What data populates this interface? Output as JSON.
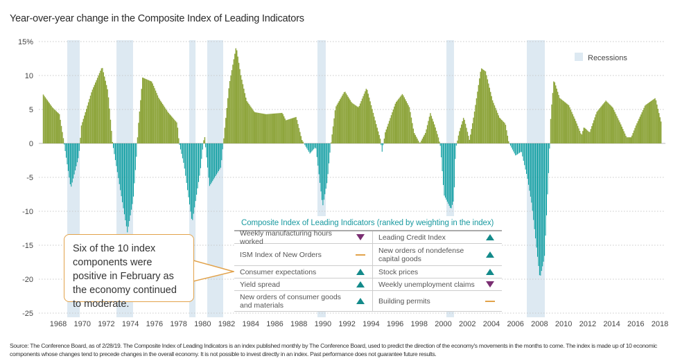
{
  "title": "Year-over-year change in the Composite Index of Leading Indicators",
  "callout": "Six of the 10 index components were positive in February as the economy continued to moderate.",
  "table": {
    "title": "Composite Index of Leading Indicators (ranked by weighting in the index)",
    "rows": [
      [
        {
          "label": "Weekly manufacturing hours worked",
          "dir": "down"
        },
        {
          "label": "Leading Credit Index",
          "dir": "up"
        }
      ],
      [
        {
          "label": "ISM Index of New Orders",
          "dir": "flat"
        },
        {
          "label": "New orders of nondefense capital goods",
          "dir": "up"
        }
      ],
      [
        {
          "label": "Consumer expectations",
          "dir": "up"
        },
        {
          "label": "Stock prices",
          "dir": "up"
        }
      ],
      [
        {
          "label": "Yield spread",
          "dir": "up"
        },
        {
          "label": "Weekly unemployment claims",
          "dir": "down"
        }
      ],
      [
        {
          "label": "New orders of consumer goods and materials",
          "dir": "up"
        },
        {
          "label": "Building permits",
          "dir": "flat"
        }
      ]
    ],
    "colors": {
      "up": "#138a8a",
      "down": "#7a2e72",
      "flat": "#e2a24a"
    }
  },
  "footer": "Source: The Conference Board, as of 2/28/19. The Composite Index of Leading Indicators is an index published monthly by The Conference Board, used to predict the direction of the economy's movements in the months to come. The index is made up of 10 economic components whose changes tend to precede changes in the overall economy. It is not possible to invest directly in an index. Past performance does not guarantee future results.",
  "chart_data": {
    "type": "bar",
    "title": "Year-over-year change in the Composite Index of Leading Indicators",
    "ylim": [
      -25,
      15
    ],
    "xlim": [
      1966.7,
      2018.2
    ],
    "y_ticks": [
      15,
      10,
      5,
      0,
      -5,
      -10,
      -15,
      -20,
      -25
    ],
    "y_tick_labels": [
      "15%",
      "10",
      "5",
      "0",
      "-5",
      "-10",
      "-15",
      "-20",
      "-25"
    ],
    "x_ticks": [
      "1968",
      "1970",
      "1972",
      "1974",
      "1976",
      "1978",
      "1980",
      "1982",
      "1984",
      "1986",
      "1988",
      "1990",
      "1992",
      "1994",
      "1996",
      "1998",
      "2000",
      "2002",
      "2004",
      "2006",
      "2008",
      "2010",
      "2012",
      "2014",
      "2016",
      "2018"
    ],
    "grid": "horizontal dotted",
    "colors": {
      "positive": "#8ea53c",
      "negative": "#00999c",
      "recession": "#dde9f2"
    },
    "legend": {
      "label": "Recessions",
      "placement": "top-right"
    },
    "recessions": [
      [
        1968.75,
        1969.79
      ],
      [
        1972.84,
        1974.22
      ],
      [
        1978.89,
        1979.41
      ],
      [
        1980.38,
        1981.71
      ],
      [
        1989.54,
        1990.23
      ],
      [
        2000.26,
        2000.89
      ],
      [
        2006.94,
        2008.44
      ]
    ],
    "points": [
      [
        1966.72,
        7.2
      ],
      [
        1967.48,
        5.3
      ],
      [
        1968.06,
        4.3
      ],
      [
        1968.44,
        0.2
      ],
      [
        1969.02,
        -6.6
      ],
      [
        1969.69,
        -1.8
      ],
      [
        1969.88,
        2.6
      ],
      [
        1970.75,
        7.7
      ],
      [
        1971.61,
        11.3
      ],
      [
        1972.09,
        7.7
      ],
      [
        1972.47,
        0.2
      ],
      [
        1972.95,
        -4.9
      ],
      [
        1973.72,
        -13.1
      ],
      [
        1974.2,
        -8.3
      ],
      [
        1974.49,
        -1.5
      ],
      [
        1974.58,
        1.9
      ],
      [
        1974.97,
        9.7
      ],
      [
        1975.74,
        9.1
      ],
      [
        1976.31,
        6.7
      ],
      [
        1977.08,
        4.6
      ],
      [
        1977.85,
        3.0
      ],
      [
        1978.0,
        0.2
      ],
      [
        1978.43,
        -3.2
      ],
      [
        1979.1,
        -11.7
      ],
      [
        1979.77,
        -4.2
      ],
      [
        1980.11,
        1.4
      ],
      [
        1980.54,
        -6.3
      ],
      [
        1981.5,
        -3.5
      ],
      [
        1981.78,
        1.9
      ],
      [
        1982.17,
        8.7
      ],
      [
        1982.75,
        14.3
      ],
      [
        1983.13,
        10.1
      ],
      [
        1983.61,
        6.3
      ],
      [
        1984.28,
        4.6
      ],
      [
        1985.24,
        4.3
      ],
      [
        1986.59,
        4.5
      ],
      [
        1986.87,
        3.4
      ],
      [
        1987.74,
        3.9
      ],
      [
        1988.22,
        0.5
      ],
      [
        1988.89,
        -1.5
      ],
      [
        1989.37,
        -0.5
      ],
      [
        1989.95,
        -9.3
      ],
      [
        1990.33,
        -5.6
      ],
      [
        1990.62,
        -0.1
      ],
      [
        1991.0,
        5.3
      ],
      [
        1991.77,
        7.7
      ],
      [
        1992.35,
        6.0
      ],
      [
        1992.92,
        5.3
      ],
      [
        1993.59,
        8.2
      ],
      [
        1994.27,
        3.6
      ],
      [
        1994.75,
        0.5
      ],
      [
        1994.88,
        -1.3
      ],
      [
        1995.13,
        1.6
      ],
      [
        1996.0,
        6.0
      ],
      [
        1996.57,
        7.3
      ],
      [
        1997.15,
        5.3
      ],
      [
        1997.53,
        1.6
      ],
      [
        1998.01,
        0.0
      ],
      [
        1998.49,
        1.6
      ],
      [
        1998.88,
        4.5
      ],
      [
        1999.26,
        2.6
      ],
      [
        1999.55,
        0.9
      ],
      [
        1999.74,
        -0.5
      ],
      [
        2000.03,
        -7.6
      ],
      [
        2000.61,
        -9.7
      ],
      [
        2000.85,
        -8.3
      ],
      [
        2001.0,
        -0.8
      ],
      [
        2001.27,
        1.6
      ],
      [
        2001.66,
        3.9
      ],
      [
        2002.14,
        0.5
      ],
      [
        2002.52,
        4.3
      ],
      [
        2003.1,
        11.1
      ],
      [
        2003.48,
        10.6
      ],
      [
        2004.06,
        6.3
      ],
      [
        2004.63,
        3.8
      ],
      [
        2005.12,
        2.9
      ],
      [
        2005.4,
        0.2
      ],
      [
        2005.98,
        -1.8
      ],
      [
        2006.46,
        -1.2
      ],
      [
        2006.94,
        -4.9
      ],
      [
        2007.33,
        -9.0
      ],
      [
        2008.0,
        -19.9
      ],
      [
        2008.38,
        -16.8
      ],
      [
        2008.57,
        -10.0
      ],
      [
        2008.77,
        -2.5
      ],
      [
        2008.9,
        4.3
      ],
      [
        2009.15,
        9.4
      ],
      [
        2009.63,
        6.7
      ],
      [
        2010.4,
        5.6
      ],
      [
        2010.97,
        3.3
      ],
      [
        2011.45,
        1.2
      ],
      [
        2011.65,
        2.4
      ],
      [
        2012.12,
        1.6
      ],
      [
        2012.7,
        4.6
      ],
      [
        2013.47,
        6.3
      ],
      [
        2014.04,
        5.3
      ],
      [
        2014.72,
        2.8
      ],
      [
        2015.19,
        0.9
      ],
      [
        2015.58,
        0.9
      ],
      [
        2015.96,
        2.6
      ],
      [
        2016.73,
        5.6
      ],
      [
        2017.59,
        6.7
      ],
      [
        2018.07,
        3.1
      ]
    ]
  }
}
